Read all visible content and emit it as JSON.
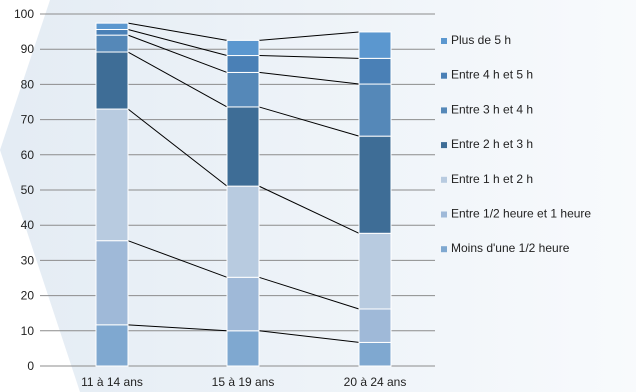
{
  "chart_data": {
    "type": "bar",
    "stacked": true,
    "categories": [
      "11 à 14 ans",
      "15 à 19 ans",
      "20 à 24 ans"
    ],
    "ylim": [
      0,
      100
    ],
    "yticks": [
      0,
      10,
      20,
      30,
      40,
      50,
      60,
      70,
      80,
      90,
      100
    ],
    "grid": true,
    "legend_position": "right",
    "series": [
      {
        "name": "Moins d'une 1/2 heure",
        "color": "#7fa8d0",
        "values": [
          11.7,
          10.0,
          6.7
        ]
      },
      {
        "name": "Entre 1/2 heure et 1 heure",
        "color": "#9fb9d8",
        "values": [
          23.9,
          15.2,
          9.5
        ]
      },
      {
        "name": "Entre 1 h et 2 h",
        "color": "#b8cbe0",
        "values": [
          37.4,
          25.9,
          21.5
        ]
      },
      {
        "name": "Entre 2 h et 3 h",
        "color": "#3e6d96",
        "values": [
          16.2,
          22.5,
          27.6
        ]
      },
      {
        "name": "Entre 3 h et 4 h",
        "color": "#5588b8",
        "values": [
          4.8,
          9.8,
          14.8
        ]
      },
      {
        "name": "Entre 4 h et 5 h",
        "color": "#4a80b6",
        "values": [
          1.6,
          4.8,
          7.3
        ]
      },
      {
        "name": "Plus de 5 h",
        "color": "#5b97cf",
        "values": [
          1.8,
          4.3,
          7.5
        ]
      }
    ]
  }
}
